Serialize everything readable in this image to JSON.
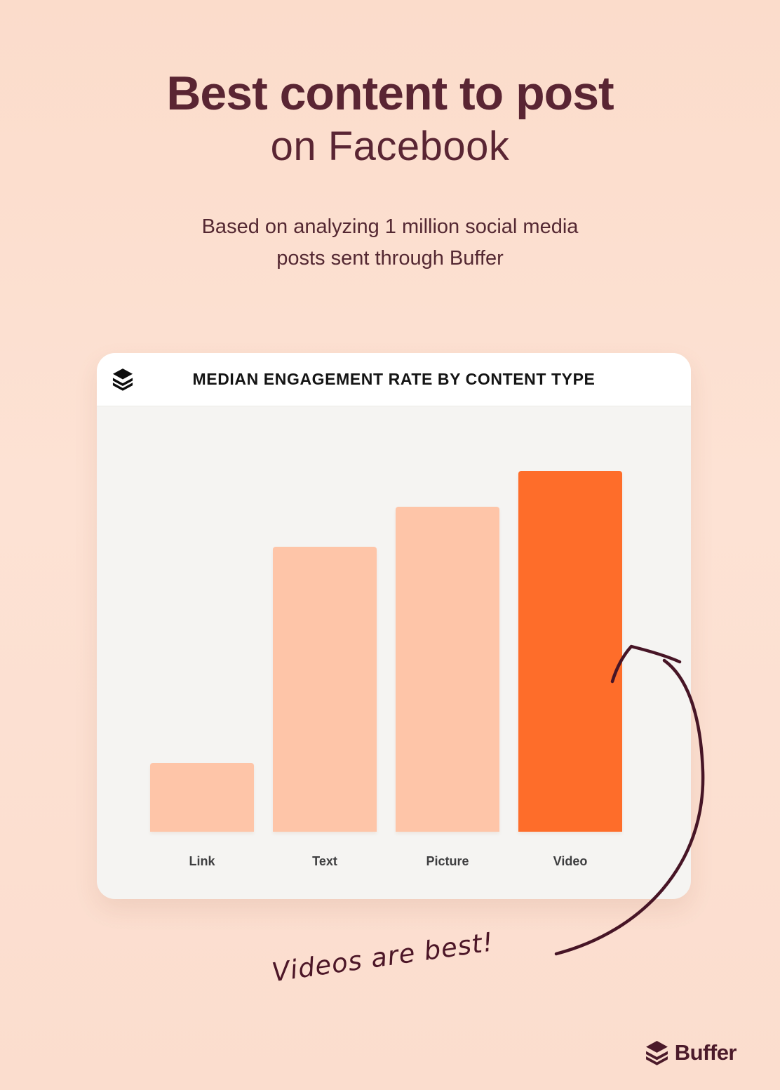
{
  "page": {
    "title": "Best content to post",
    "subtitle": "on Facebook",
    "description_line1": "Based on analyzing 1 million social media",
    "description_line2": "posts sent through Buffer",
    "background_color": "#FBDCCB",
    "heading_color": "#5A2533"
  },
  "chart_card": {
    "header_title": "MEDIAN ENGAGEMENT RATE BY CONTENT TYPE",
    "header_icon": "buffer-layers-icon",
    "header_background": "#FFFFFF",
    "body_background": "#F5F4F2"
  },
  "chart_data": {
    "type": "bar",
    "title": "MEDIAN ENGAGEMENT RATE BY CONTENT TYPE",
    "categories": [
      "Link",
      "Text",
      "Picture",
      "Video"
    ],
    "values": [
      19,
      79,
      90,
      100
    ],
    "value_unit": "percent of tallest bar (no numeric axis shown)",
    "xlabel": "",
    "ylabel": "",
    "grid": false,
    "legend": false,
    "highlight_category": "Video",
    "bar_color": "#FEC5A8",
    "highlight_color": "#FE6D2A",
    "label_color": "#3E3E40"
  },
  "annotation": {
    "text": "Videos are best!",
    "ink_color": "#471526",
    "arrow_target": "Video bar"
  },
  "footer": {
    "brand": "Buffer",
    "logo_icon": "buffer-layers-icon",
    "color": "#4B1A2A"
  }
}
